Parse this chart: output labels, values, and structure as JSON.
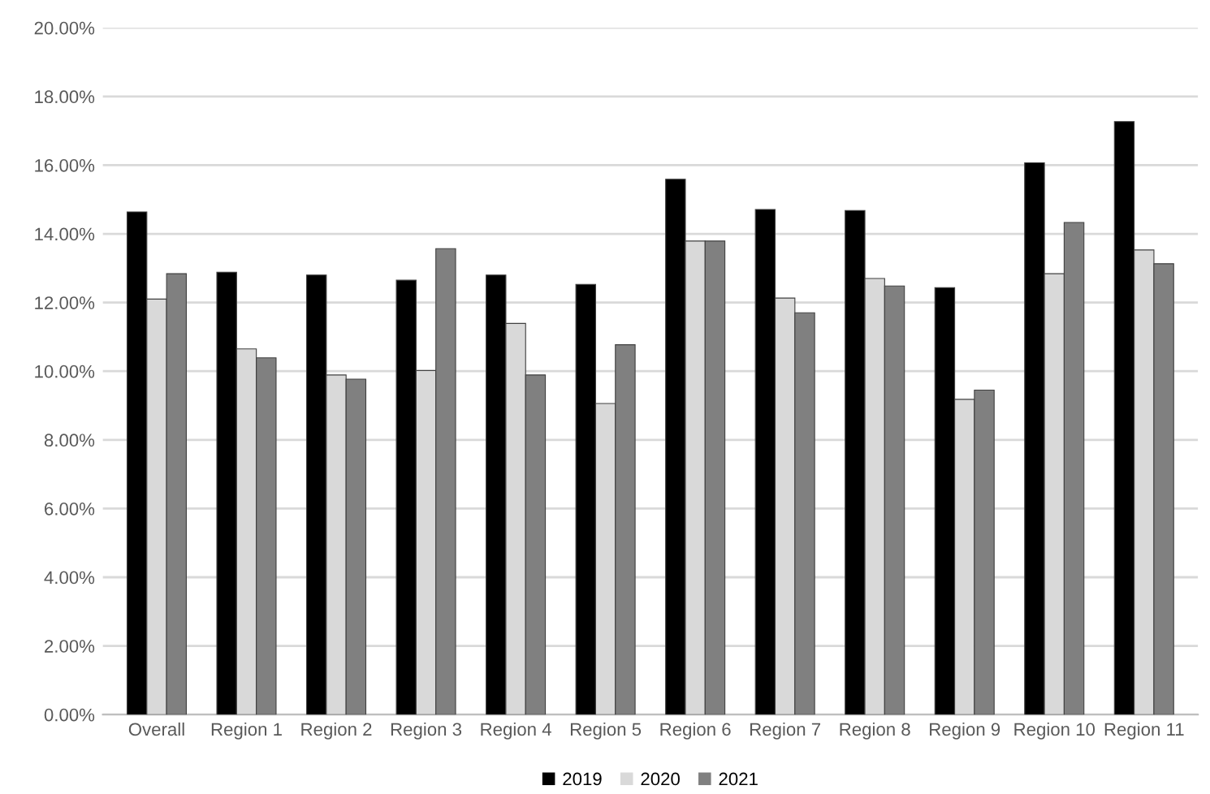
{
  "chart_data": {
    "type": "bar",
    "categories": [
      "Overall",
      "Region 1",
      "Region 2",
      "Region 3",
      "Region 4",
      "Region 5",
      "Region 6",
      "Region 7",
      "Region 8",
      "Region 9",
      "Region 10",
      "Region 11"
    ],
    "series": [
      {
        "name": "2019",
        "color": "#000000",
        "values": [
          14.64,
          12.88,
          12.8,
          12.65,
          12.8,
          12.53,
          15.59,
          14.71,
          14.68,
          12.43,
          16.07,
          17.27
        ]
      },
      {
        "name": "2020",
        "color": "#d9d9d9",
        "values": [
          12.1,
          10.65,
          9.89,
          10.02,
          11.39,
          9.06,
          13.79,
          12.13,
          12.7,
          9.18,
          12.84,
          13.53
        ]
      },
      {
        "name": "2021",
        "color": "#808080",
        "values": [
          12.84,
          10.39,
          9.77,
          13.57,
          9.89,
          10.77,
          13.79,
          11.7,
          12.48,
          9.45,
          14.33,
          13.13
        ]
      }
    ],
    "ylim": [
      0,
      20
    ],
    "yticks": [
      {
        "value": 0,
        "label": "0.00%"
      },
      {
        "value": 2,
        "label": "2.00%"
      },
      {
        "value": 4,
        "label": "4.00%"
      },
      {
        "value": 6,
        "label": "6.00%"
      },
      {
        "value": 8,
        "label": "8.00%"
      },
      {
        "value": 10,
        "label": "10.00%"
      },
      {
        "value": 12,
        "label": "12.00%"
      },
      {
        "value": 14,
        "label": "14.00%"
      },
      {
        "value": 16,
        "label": "16.00%"
      },
      {
        "value": 18,
        "label": "18.00%"
      },
      {
        "value": 20,
        "label": "20.00%"
      }
    ],
    "grid": "y",
    "legend": "bottom"
  }
}
